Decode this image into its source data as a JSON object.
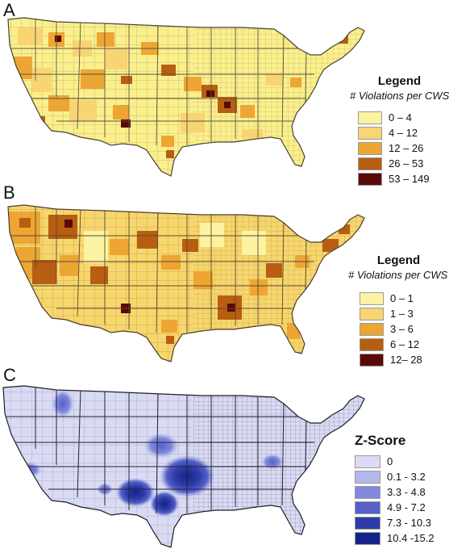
{
  "panels": {
    "a": {
      "letter": "A",
      "legend": {
        "title": "Legend",
        "subtitle": "# Violations per CWS",
        "classes": [
          {
            "label": "0  – 4",
            "color": "#fbf3a1"
          },
          {
            "label": "4  – 12",
            "color": "#f8d472"
          },
          {
            "label": "12 – 26",
            "color": "#eda533"
          },
          {
            "label": "26 – 53",
            "color": "#b75e13"
          },
          {
            "label": "53 – 149",
            "color": "#5a0a06"
          }
        ]
      }
    },
    "b": {
      "letter": "B",
      "legend": {
        "title": "Legend",
        "subtitle": "# Violations per CWS",
        "classes": [
          {
            "label": "0 – 1",
            "color": "#fbf3a1"
          },
          {
            "label": "1 – 3",
            "color": "#f8d472"
          },
          {
            "label": "3 – 6",
            "color": "#eda533"
          },
          {
            "label": "6 – 12",
            "color": "#b75e13"
          },
          {
            "label": "12– 28",
            "color": "#5a0a06"
          }
        ]
      }
    },
    "c": {
      "letter": "C",
      "legend": {
        "title": "Z-Score",
        "classes": [
          {
            "label": "0",
            "color": "#dadcf5"
          },
          {
            "label": "0.1 -  3.2",
            "color": "#b3b8ec"
          },
          {
            "label": "3.3  -  4.8",
            "color": "#8189dc"
          },
          {
            "label": "4.9  -  7.2",
            "color": "#5560c8"
          },
          {
            "label": "7.3  -  10.3",
            "color": "#2e3ca8"
          },
          {
            "label": "10.4 -15.2",
            "color": "#14238a"
          }
        ]
      }
    }
  },
  "map_styles": {
    "a": {
      "base": "#fbef8c",
      "border": "#8f8560"
    },
    "b": {
      "base": "#f7d66c",
      "border": "#8f7a4c"
    },
    "c": {
      "base": "#d9dbf4",
      "border": "#3a3a4a"
    }
  }
}
